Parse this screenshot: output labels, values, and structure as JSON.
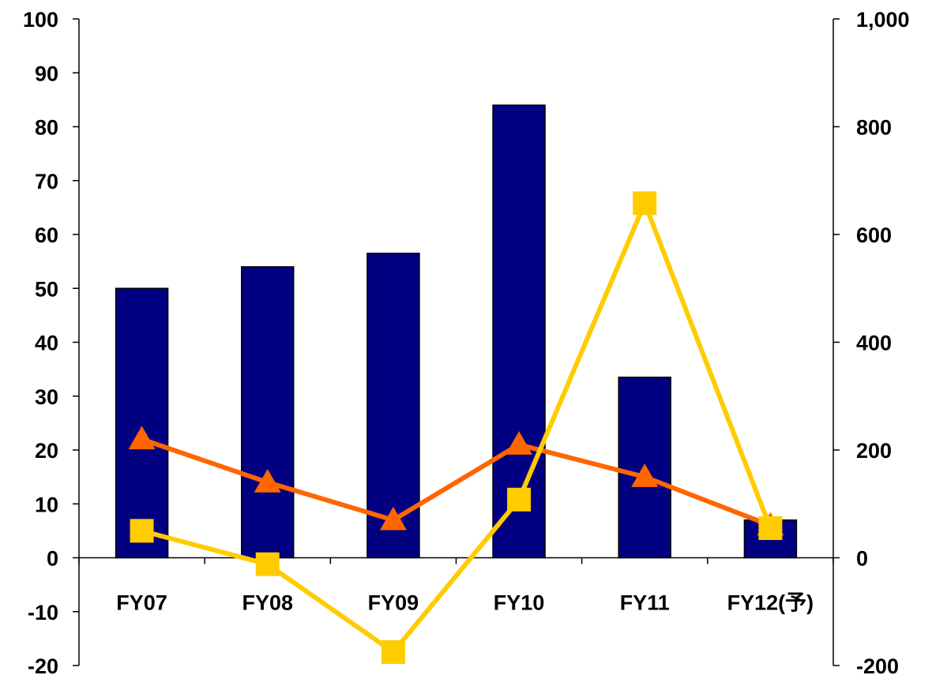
{
  "chart_data": {
    "type": "bar",
    "categories": [
      "FY07",
      "FY08",
      "FY09",
      "FY10",
      "FY11",
      "FY12(予)"
    ],
    "left_axis": {
      "ylim": [
        -20,
        100
      ],
      "ticks": [
        100,
        90,
        80,
        70,
        60,
        50,
        40,
        30,
        20,
        10,
        0,
        -10,
        -20
      ],
      "tick_labels": [
        "100",
        "90",
        "80",
        "70",
        "60",
        "50",
        "40",
        "30",
        "20",
        "10",
        "0",
        "-10",
        "-20"
      ]
    },
    "right_axis": {
      "ylim": [
        -200,
        1000
      ],
      "ticks": [
        1000,
        800,
        600,
        400,
        200,
        0,
        -200
      ],
      "tick_labels": [
        "1,000",
        "800",
        "600",
        "400",
        "200",
        "0",
        "-200"
      ]
    },
    "series": [
      {
        "type": "bar",
        "axis": "left",
        "color": "#000080",
        "values": [
          50,
          54,
          56.5,
          84,
          33.5,
          7
        ]
      },
      {
        "type": "line",
        "axis": "left",
        "marker": "triangle",
        "color": "#ff6600",
        "values": [
          22,
          14,
          7,
          21,
          15,
          6
        ]
      },
      {
        "type": "line",
        "axis": "right",
        "marker": "square",
        "color": "#ffcc00",
        "values": [
          50,
          -12,
          -175,
          108,
          658,
          55
        ]
      }
    ],
    "grid": false,
    "legend": "none"
  }
}
